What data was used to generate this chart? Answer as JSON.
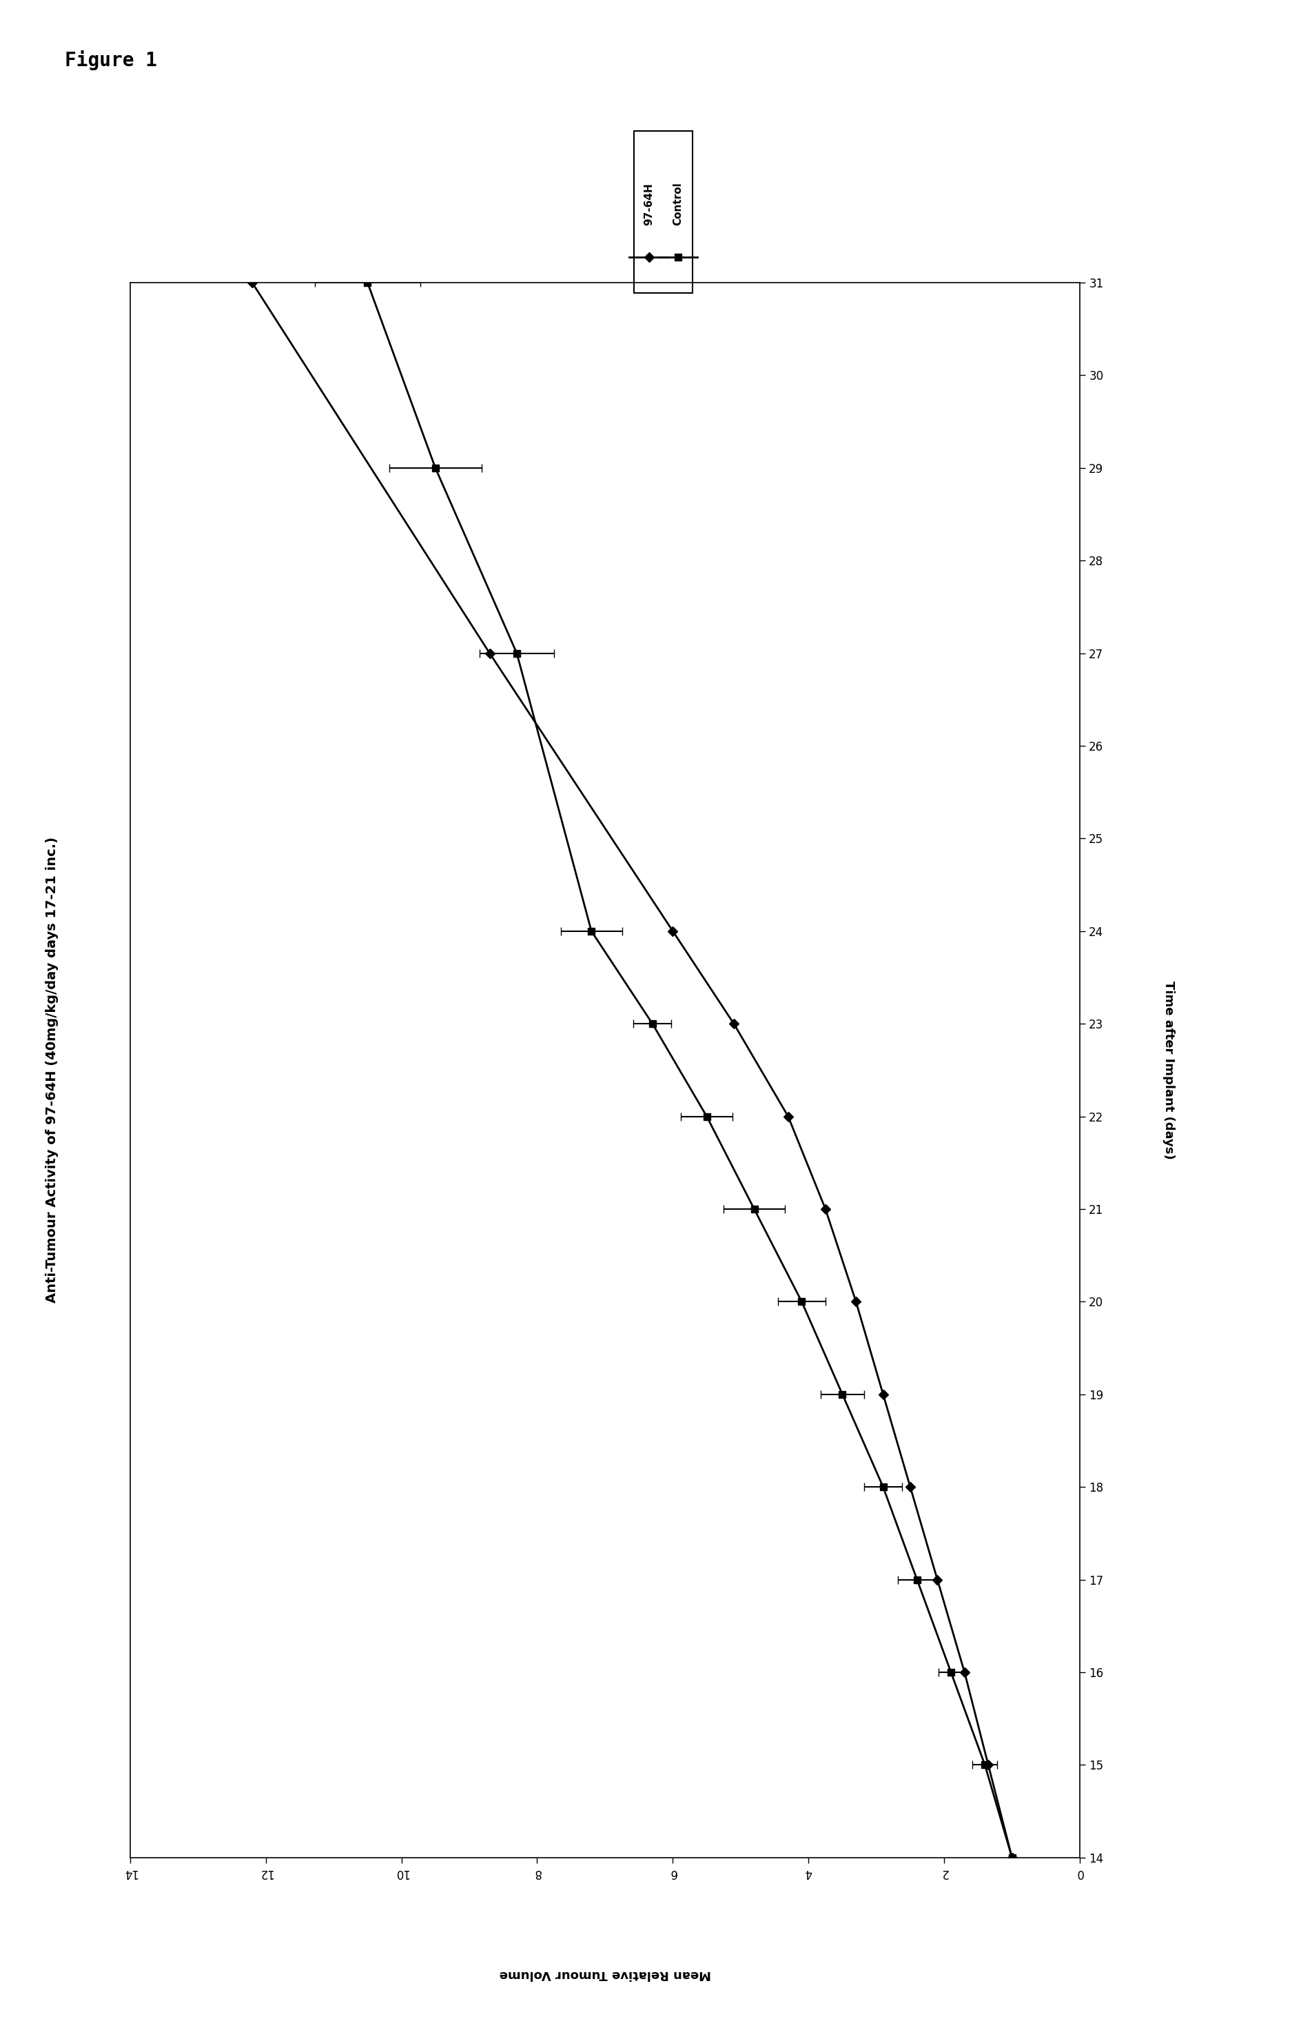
{
  "figure_label": "Figure 1",
  "title": "Anti-Tumour Activity of 97-64H (40mg/kg/day days 17-21 inc.)",
  "xlabel": "Time after Implant (days)",
  "ylabel": "Mean Relative Tumour Volume",
  "days_xlim": [
    14,
    31
  ],
  "vol_ylim": [
    0,
    14
  ],
  "days_ticks": [
    14,
    15,
    16,
    17,
    18,
    19,
    20,
    21,
    22,
    23,
    24,
    25,
    26,
    27,
    28,
    29,
    30,
    31
  ],
  "vol_ticks": [
    0,
    2,
    4,
    6,
    8,
    10,
    12,
    14
  ],
  "series_97_days": [
    14,
    15,
    16,
    17,
    18,
    19,
    20,
    21,
    22,
    23,
    24,
    27,
    31
  ],
  "series_97_vol": [
    1.0,
    1.35,
    1.7,
    2.1,
    2.5,
    2.9,
    3.3,
    3.75,
    4.3,
    5.1,
    6.0,
    8.7,
    12.2
  ],
  "series_ctrl_days": [
    14,
    15,
    16,
    17,
    18,
    19,
    20,
    21,
    22,
    23,
    24,
    27,
    29,
    31
  ],
  "series_ctrl_vol": [
    1.0,
    1.4,
    1.9,
    2.4,
    2.9,
    3.5,
    4.1,
    4.8,
    5.5,
    6.3,
    7.2,
    8.3,
    9.5,
    10.5
  ],
  "series_ctrl_xerr": [
    0.0,
    0.18,
    0.18,
    0.28,
    0.28,
    0.32,
    0.35,
    0.45,
    0.38,
    0.28,
    0.45,
    0.55,
    0.68,
    0.78
  ],
  "color": "#000000",
  "bg_color": "#ffffff",
  "linewidth": 2.0,
  "legend_labels": [
    "97-64H",
    "Control"
  ],
  "title_fontsize": 14,
  "axis_label_fontsize": 13,
  "tick_fontsize": 12,
  "figure_label_fontsize": 20
}
